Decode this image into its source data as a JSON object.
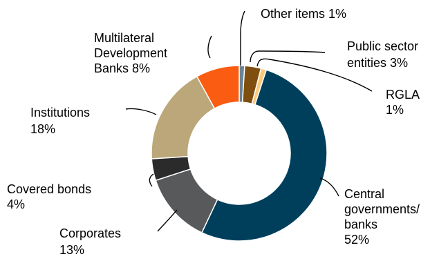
{
  "chart_data": {
    "type": "pie",
    "donut": true,
    "slices": [
      {
        "label": "Central governments/ banks",
        "value": 52,
        "display": [
          "Central",
          "governments/",
          "banks",
          "52%"
        ],
        "color": "#003f5c"
      },
      {
        "label": "Corporates",
        "value": 13,
        "display": [
          "Corporates",
          "13%"
        ],
        "color": "#58595b"
      },
      {
        "label": "Covered bonds",
        "value": 4,
        "display": [
          "Covered bonds",
          "4%"
        ],
        "color": "#2b2b2b"
      },
      {
        "label": "Institutions",
        "value": 18,
        "display": [
          "Institutions",
          "18%"
        ],
        "color": "#bca77a"
      },
      {
        "label": "Multilateral Development Banks",
        "value": 8,
        "display": [
          "Multilateral",
          "Development",
          "Banks 8%"
        ],
        "color": "#fa5c12"
      },
      {
        "label": "Other items",
        "value": 1,
        "display": [
          "Other items 1%"
        ],
        "color": "#6a8696"
      },
      {
        "label": "Public sector entities",
        "value": 3,
        "display": [
          "Public sector",
          "entities 3%"
        ],
        "color": "#7f4f10"
      },
      {
        "label": "RGLA",
        "value": 1,
        "display": [
          "RGLA",
          "1%"
        ],
        "color": "#fcc97c"
      }
    ],
    "legend": "none",
    "title": ""
  }
}
